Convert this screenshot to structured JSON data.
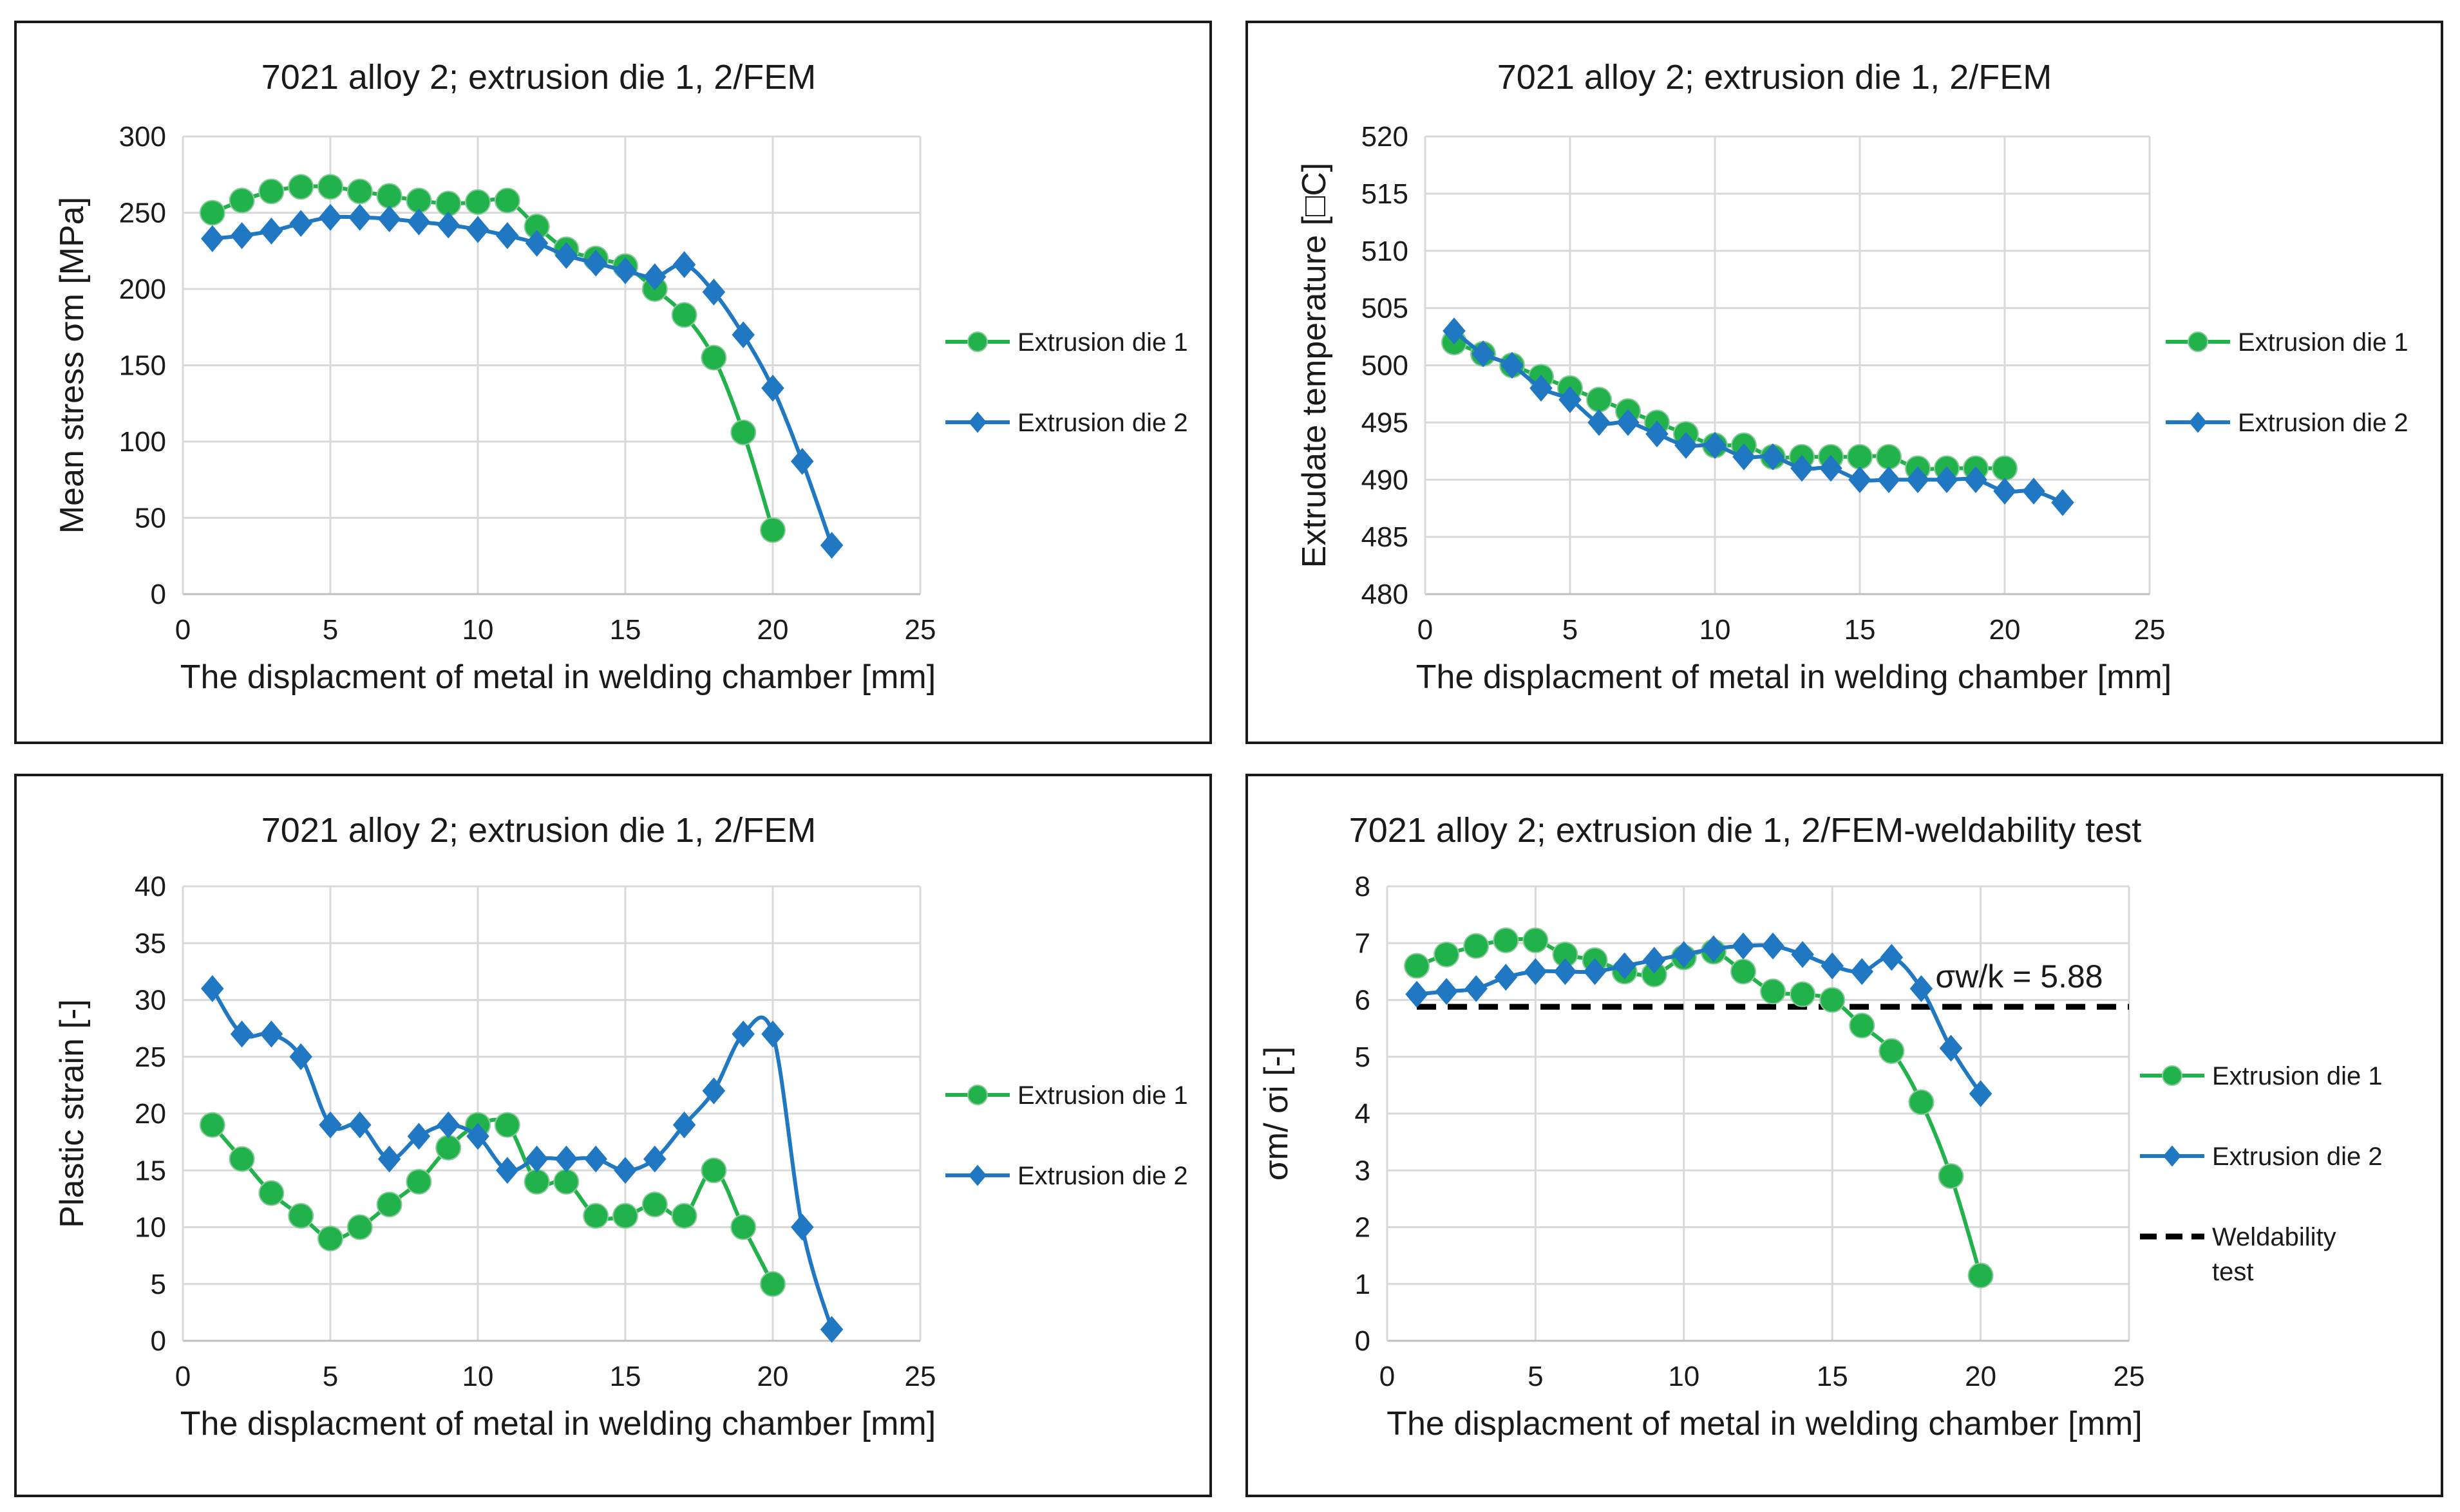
{
  "chart_data": [
    {
      "type": "line",
      "title": "7021 alloy 2; extrusion die 1, 2/FEM",
      "xlabel": "The displacment of metal in welding chamber [mm]",
      "ylabel": "Mean stress σm [MPa]",
      "xlim": [
        0,
        25
      ],
      "xticks": [
        0,
        5,
        10,
        15,
        20,
        25
      ],
      "ylim": [
        0,
        300
      ],
      "yticks": [
        0,
        50,
        100,
        150,
        200,
        250,
        300
      ],
      "series": [
        {
          "name": "Extrusion die 1",
          "color": "#22b24c",
          "marker": "circle",
          "x": [
            1,
            2,
            3,
            4,
            5,
            6,
            7,
            8,
            9,
            10,
            11,
            12,
            13,
            14,
            15,
            16,
            17,
            18,
            19,
            20
          ],
          "y": [
            250,
            258,
            264,
            267,
            267,
            264,
            261,
            258,
            256,
            257,
            258,
            241,
            226,
            220,
            215,
            200,
            183,
            155,
            106,
            42
          ]
        },
        {
          "name": "Extrusion die 2",
          "color": "#1f78c1",
          "marker": "diamond",
          "x": [
            1,
            2,
            3,
            4,
            5,
            6,
            7,
            8,
            9,
            10,
            11,
            12,
            13,
            14,
            15,
            16,
            17,
            18,
            19,
            20,
            21,
            22
          ],
          "y": [
            233,
            235,
            238,
            243,
            247,
            247,
            246,
            244,
            242,
            239,
            235,
            230,
            222,
            217,
            212,
            208,
            216,
            198,
            170,
            135,
            87,
            32
          ]
        }
      ]
    },
    {
      "type": "line",
      "title": "7021 alloy 2; extrusion die 1, 2/FEM",
      "xlabel": "The displacment of metal in welding chamber [mm]",
      "ylabel": "Extrudate temperature [□C]",
      "xlim": [
        0,
        25
      ],
      "xticks": [
        0,
        5,
        10,
        15,
        20,
        25
      ],
      "ylim": [
        480,
        520
      ],
      "yticks": [
        480,
        485,
        490,
        495,
        500,
        505,
        510,
        515,
        520
      ],
      "series": [
        {
          "name": "Extrusion die 1",
          "color": "#22b24c",
          "marker": "circle",
          "x": [
            1,
            2,
            3,
            4,
            5,
            6,
            7,
            8,
            9,
            10,
            11,
            12,
            13,
            14,
            15,
            16,
            17,
            18,
            19,
            20
          ],
          "y": [
            502,
            501,
            500,
            499,
            498,
            497,
            496,
            495,
            494,
            493,
            493,
            492,
            492,
            492,
            492,
            492,
            491,
            491,
            491,
            491
          ]
        },
        {
          "name": "Extrusion die 2",
          "color": "#1f78c1",
          "marker": "diamond",
          "x": [
            1,
            2,
            3,
            4,
            5,
            6,
            7,
            8,
            9,
            10,
            11,
            12,
            13,
            14,
            15,
            16,
            17,
            18,
            19,
            20,
            21,
            22
          ],
          "y": [
            503,
            501,
            500,
            498,
            497,
            495,
            495,
            494,
            493,
            493,
            492,
            492,
            491,
            491,
            490,
            490,
            490,
            490,
            490,
            489,
            489,
            488
          ]
        }
      ]
    },
    {
      "type": "line",
      "title": "7021 alloy 2; extrusion die 1, 2/FEM",
      "xlabel": "The displacment of metal in welding chamber [mm]",
      "ylabel": "Plastic strain [-]",
      "xlim": [
        0,
        25
      ],
      "xticks": [
        0,
        5,
        10,
        15,
        20,
        25
      ],
      "ylim": [
        0,
        40
      ],
      "yticks": [
        0,
        5,
        10,
        15,
        20,
        25,
        30,
        35,
        40
      ],
      "series": [
        {
          "name": "Extrusion die 1",
          "color": "#22b24c",
          "marker": "circle",
          "x": [
            1,
            2,
            3,
            4,
            5,
            6,
            7,
            8,
            9,
            10,
            11,
            12,
            13,
            14,
            15,
            16,
            17,
            18,
            19,
            20
          ],
          "y": [
            19,
            16,
            13,
            11,
            9,
            10,
            12,
            14,
            17,
            19,
            19,
            14,
            14,
            11,
            11,
            12,
            11,
            15,
            10,
            5
          ]
        },
        {
          "name": "Extrusion die 2",
          "color": "#1f78c1",
          "marker": "diamond",
          "x": [
            1,
            2,
            3,
            4,
            5,
            6,
            7,
            8,
            9,
            10,
            11,
            12,
            13,
            14,
            15,
            16,
            17,
            18,
            19,
            20,
            21,
            22
          ],
          "y": [
            31,
            27,
            27,
            25,
            19,
            19,
            16,
            18,
            19,
            18,
            15,
            16,
            16,
            16,
            15,
            16,
            19,
            22,
            27,
            27,
            10,
            1
          ]
        }
      ]
    },
    {
      "type": "line",
      "title": "7021 alloy 2; extrusion die 1, 2/FEM-weldability test",
      "xlabel": "The displacment of metal in welding chamber [mm]",
      "ylabel": "σm/ σi [-]",
      "xlim": [
        0,
        25
      ],
      "xticks": [
        0,
        5,
        10,
        15,
        20,
        25
      ],
      "ylim": [
        0,
        8
      ],
      "yticks": [
        0,
        1,
        2,
        3,
        4,
        5,
        6,
        7,
        8
      ],
      "annotation": "σw/k = 5.88",
      "threshold": {
        "name": "Weldability test",
        "value": 5.88,
        "x": [
          1,
          25
        ],
        "color": "#000000"
      },
      "series": [
        {
          "name": "Extrusion die 1",
          "color": "#22b24c",
          "marker": "circle",
          "x": [
            1,
            2,
            3,
            4,
            5,
            6,
            7,
            8,
            9,
            10,
            11,
            12,
            13,
            14,
            15,
            16,
            17,
            18,
            19,
            20
          ],
          "y": [
            6.6,
            6.8,
            6.95,
            7.05,
            7.05,
            6.8,
            6.7,
            6.5,
            6.45,
            6.75,
            6.85,
            6.5,
            6.15,
            6.1,
            6.0,
            5.55,
            5.1,
            4.2,
            2.9,
            1.15
          ]
        },
        {
          "name": "Extrusion die 2",
          "color": "#1f78c1",
          "marker": "diamond",
          "x": [
            1,
            2,
            3,
            4,
            5,
            6,
            7,
            8,
            9,
            10,
            11,
            12,
            13,
            14,
            15,
            16,
            17,
            18,
            19,
            20
          ],
          "y": [
            6.1,
            6.15,
            6.2,
            6.4,
            6.5,
            6.5,
            6.5,
            6.6,
            6.7,
            6.8,
            6.9,
            6.95,
            6.95,
            6.8,
            6.6,
            6.5,
            6.75,
            6.2,
            5.15,
            4.35
          ]
        }
      ]
    }
  ]
}
